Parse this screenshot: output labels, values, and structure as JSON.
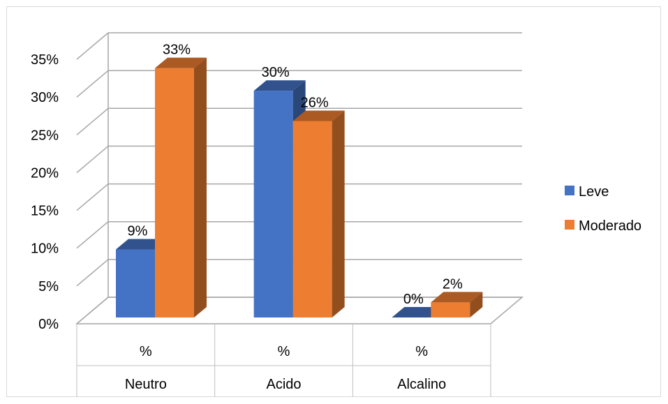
{
  "chart_data": {
    "type": "bar",
    "style": "3d-clustered-column",
    "categories": [
      "Neutro",
      "Acido",
      "Alcalino"
    ],
    "category_sublabels": [
      "%",
      "%",
      "%"
    ],
    "series": [
      {
        "name": "Leve",
        "values": [
          9,
          30,
          0
        ],
        "labels": [
          "9%",
          "30%",
          "0%"
        ],
        "color": "#4472c4"
      },
      {
        "name": "Moderado",
        "values": [
          33,
          26,
          2
        ],
        "labels": [
          "33%",
          "26%",
          "2%"
        ],
        "color": "#ed7d31"
      }
    ],
    "ylim": [
      0,
      35
    ],
    "ytick_labels": [
      "0%",
      "5%",
      "10%",
      "15%",
      "20%",
      "25%",
      "30%",
      "35%"
    ],
    "grid": true,
    "legend_position": "right"
  }
}
